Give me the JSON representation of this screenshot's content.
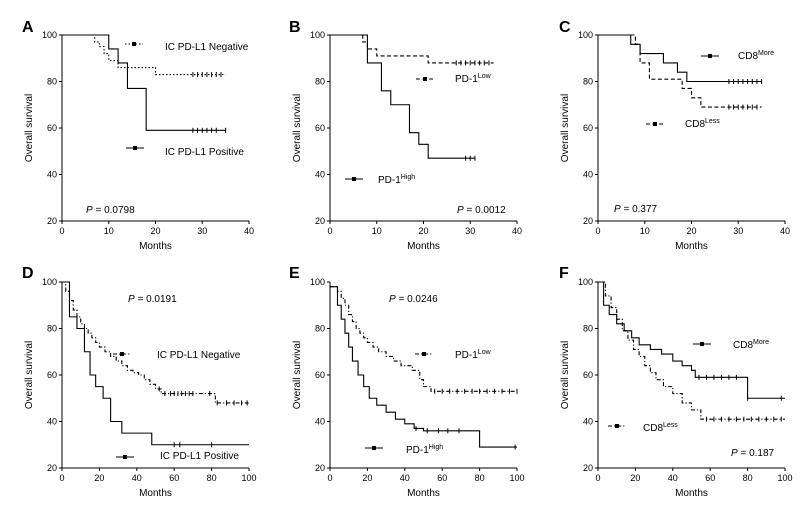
{
  "chart_data": [
    {
      "type": "line",
      "panel": "A",
      "title": "",
      "xlabel": "Months",
      "ylabel": "Overall survival",
      "xlim": [
        0,
        40
      ],
      "ylim": [
        20,
        100
      ],
      "xticks": [
        0,
        10,
        20,
        30,
        40
      ],
      "yticks": [
        20,
        40,
        60,
        80,
        100
      ],
      "p_prefix": "P",
      "p_value": " = 0.0798",
      "series": [
        {
          "name": "IC PD-L1 Negative",
          "name_base": "IC PD-L1 Negative",
          "name_sup": "",
          "style": "dotted",
          "x": [
            0,
            7,
            8,
            9,
            10,
            12,
            14,
            20,
            35
          ],
          "values": [
            100,
            97,
            95,
            92,
            89,
            86,
            86,
            83,
            83
          ],
          "censor": [
            28,
            29,
            30,
            31,
            32,
            33,
            34
          ]
        },
        {
          "name": "IC PD-L1 Positive",
          "name_base": "IC PD-L1 Positive",
          "name_sup": "",
          "style": "solid",
          "x": [
            0,
            9,
            10,
            12,
            14,
            18,
            35
          ],
          "values": [
            100,
            100,
            94,
            88,
            77,
            59,
            59
          ],
          "censor": [
            28,
            29,
            30,
            31,
            32,
            33,
            35
          ]
        }
      ]
    },
    {
      "type": "line",
      "panel": "B",
      "title": "",
      "xlabel": "Months",
      "ylabel": "Overall survival",
      "xlim": [
        0,
        40
      ],
      "ylim": [
        20,
        100
      ],
      "xticks": [
        0,
        10,
        20,
        30,
        40
      ],
      "yticks": [
        20,
        40,
        60,
        80,
        100
      ],
      "p_prefix": "P",
      "p_value": " = 0.0012",
      "series": [
        {
          "name": "PD-1Low",
          "name_base": "PD-1",
          "name_sup": "Low",
          "style": "dashed",
          "x": [
            0,
            7,
            8,
            10,
            21,
            35
          ],
          "values": [
            100,
            97,
            94,
            91,
            88,
            88
          ],
          "censor": [
            27,
            28,
            29,
            30,
            31,
            32,
            33,
            34
          ]
        },
        {
          "name": "PD-1High",
          "name_base": "PD-1",
          "name_sup": "High",
          "style": "solid",
          "x": [
            0,
            8,
            11,
            13,
            17,
            19,
            21,
            31
          ],
          "values": [
            100,
            88,
            76,
            70,
            58,
            53,
            47,
            47
          ],
          "censor": [
            29,
            30,
            31
          ]
        }
      ]
    },
    {
      "type": "line",
      "panel": "C",
      "title": "",
      "xlabel": "Months",
      "ylabel": "Overall survival",
      "xlim": [
        0,
        40
      ],
      "ylim": [
        20,
        100
      ],
      "xticks": [
        0,
        10,
        20,
        30,
        40
      ],
      "yticks": [
        20,
        40,
        60,
        80,
        100
      ],
      "p_prefix": "P",
      "p_value": " = 0.377",
      "series": [
        {
          "name": "CD8More",
          "name_base": "CD8",
          "name_sup": "More",
          "style": "solid",
          "x": [
            0,
            7,
            9,
            14,
            17,
            19,
            35
          ],
          "values": [
            100,
            96,
            92,
            88,
            84,
            80,
            80
          ],
          "censor": [
            28,
            29,
            30,
            31,
            32,
            33,
            34,
            35
          ]
        },
        {
          "name": "CD8Less",
          "name_base": "CD8",
          "name_sup": "Less",
          "style": "dashed",
          "x": [
            0,
            8,
            9,
            11,
            18,
            20,
            22,
            35
          ],
          "values": [
            100,
            96,
            88,
            81,
            77,
            73,
            69,
            69
          ],
          "censor": [
            28,
            29,
            30,
            31,
            32,
            33,
            34
          ]
        }
      ]
    },
    {
      "type": "line",
      "panel": "D",
      "title": "",
      "xlabel": "Months",
      "ylabel": "Overall survival",
      "xlim": [
        0,
        100
      ],
      "ylim": [
        20,
        100
      ],
      "xticks": [
        0,
        20,
        40,
        60,
        80,
        100
      ],
      "yticks": [
        20,
        40,
        60,
        80,
        100
      ],
      "p_prefix": "P",
      "p_value": " = 0.0191",
      "series": [
        {
          "name": "IC PD-L1 Negative",
          "name_base": "IC PD-L1 Negative",
          "name_sup": "",
          "style": "dashdot",
          "x": [
            0,
            2,
            4,
            6,
            8,
            10,
            12,
            14,
            16,
            18,
            20,
            23,
            26,
            29,
            32,
            35,
            38,
            41,
            44,
            47,
            50,
            53,
            80,
            82,
            100
          ],
          "values": [
            100,
            96,
            92,
            88,
            85,
            82,
            80,
            78,
            76,
            74,
            72,
            70,
            68,
            66,
            64,
            62,
            61,
            60,
            58,
            56,
            54,
            52,
            52,
            48,
            48
          ],
          "censor": [
            52,
            55,
            58,
            60,
            62,
            64,
            66,
            68,
            70,
            79,
            83,
            88,
            92,
            96,
            99
          ]
        },
        {
          "name": "IC PD-L1 Positive",
          "name_base": "IC PD-L1 Positive",
          "name_sup": "",
          "style": "solid",
          "x": [
            0,
            4,
            8,
            12,
            15,
            18,
            22,
            26,
            32,
            48,
            100
          ],
          "values": [
            100,
            85,
            80,
            70,
            60,
            55,
            50,
            40,
            35,
            30,
            30
          ],
          "censor": [
            60,
            63,
            80
          ]
        }
      ]
    },
    {
      "type": "line",
      "panel": "E",
      "title": "",
      "xlabel": "Months",
      "ylabel": "Overall survival",
      "xlim": [
        0,
        100
      ],
      "ylim": [
        20,
        100
      ],
      "xticks": [
        0,
        20,
        40,
        60,
        80,
        100
      ],
      "yticks": [
        20,
        40,
        60,
        80,
        100
      ],
      "p_prefix": "P",
      "p_value": " = 0.0246",
      "series": [
        {
          "name": "PD-1Low",
          "name_base": "PD-1",
          "name_sup": "Low",
          "style": "dashdot",
          "x": [
            0,
            4,
            6,
            8,
            10,
            12,
            14,
            16,
            18,
            20,
            23,
            26,
            30,
            34,
            38,
            44,
            48,
            50,
            54,
            100
          ],
          "values": [
            98,
            96,
            93,
            90,
            86,
            83,
            80,
            78,
            76,
            74,
            72,
            70,
            68,
            66,
            64,
            62,
            58,
            55,
            53,
            53
          ],
          "censor": [
            56,
            60,
            64,
            68,
            72,
            76,
            80,
            84,
            88,
            92,
            96,
            100
          ]
        },
        {
          "name": "PD-1High",
          "name_base": "PD-1",
          "name_sup": "High",
          "style": "solid",
          "x": [
            0,
            4,
            6,
            8,
            10,
            12,
            15,
            18,
            21,
            25,
            30,
            35,
            40,
            45,
            50,
            80,
            100
          ],
          "values": [
            98,
            90,
            84,
            78,
            72,
            66,
            60,
            55,
            50,
            47,
            44,
            41,
            39,
            37,
            36,
            29,
            29
          ],
          "censor": [
            46,
            52,
            58,
            63,
            69,
            99
          ]
        }
      ]
    },
    {
      "type": "line",
      "panel": "F",
      "title": "",
      "xlabel": "Months",
      "ylabel": "Overall survival",
      "xlim": [
        0,
        100
      ],
      "ylim": [
        20,
        100
      ],
      "xticks": [
        0,
        20,
        40,
        60,
        80,
        100
      ],
      "yticks": [
        20,
        40,
        60,
        80,
        100
      ],
      "p_prefix": "P",
      "p_value": " = 0.187",
      "series": [
        {
          "name": "CD8More",
          "name_base": "CD8",
          "name_sup": "More",
          "style": "solid",
          "x": [
            0,
            3,
            6,
            10,
            14,
            18,
            22,
            28,
            34,
            40,
            45,
            50,
            52,
            60,
            80,
            100
          ],
          "values": [
            100,
            90,
            86,
            82,
            79,
            76,
            73,
            71,
            69,
            66,
            64,
            62,
            59,
            59,
            50,
            50
          ],
          "censor": [
            54,
            58,
            62,
            66,
            70,
            74,
            80,
            98
          ]
        },
        {
          "name": "CD8Less",
          "name_base": "CD8",
          "name_sup": "Less",
          "style": "dashdot",
          "x": [
            0,
            4,
            7,
            10,
            13,
            16,
            19,
            22,
            25,
            28,
            31,
            35,
            40,
            45,
            50,
            55,
            100
          ],
          "values": [
            100,
            94,
            89,
            84,
            79,
            75,
            71,
            68,
            64,
            61,
            58,
            55,
            52,
            48,
            45,
            41,
            41
          ],
          "censor": [
            58,
            62,
            66,
            70,
            74,
            78,
            82,
            86,
            90,
            94,
            98
          ]
        }
      ]
    }
  ]
}
